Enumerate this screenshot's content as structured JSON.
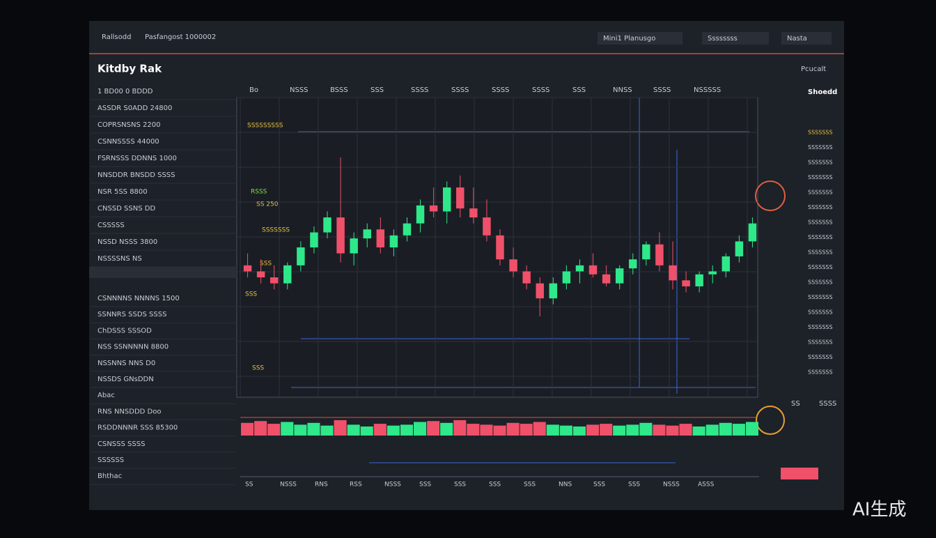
{
  "header": {
    "brand": "Rallsodd",
    "subtitle": "Pasfangost 1000002",
    "buttons": [
      "Mini1 Planusgo",
      "Ssssssss",
      "Nasta"
    ]
  },
  "panel": {
    "title": "Kitdby Rak",
    "action": "Pcucalt"
  },
  "sidebar": {
    "rows": [
      "1 BD00  0 BDDD",
      "ASSDR S0ADD 24800",
      "COPRSNSNS 2200",
      "CSNNSSSS 44000",
      "FSRNSSS DDNNS 1000",
      "NNSDDR BNSDD SSSS",
      "NSR 5SS 8800",
      "CNSSD SSNS DD",
      "CSSSSS",
      "NSSD NSSS 3800",
      "NSSSSNS NS",
      "CSNNNNS NNNNS 1500",
      "SSNNRS SSDS SSSS",
      "ChDSSS SSSOD",
      "NSS SSNNNNN 8800",
      "NSSNNS NNS D0",
      "NSSDS GNsDDN",
      "Abac",
      "RNS NNSDDD Doo",
      "RSDDNNNR SSS 85300",
      "CSNSSS SSSS",
      "SSSSSS",
      "Bhthac"
    ]
  },
  "chart": {
    "top_labels": [
      "Bo",
      "NSSS",
      "BSSS",
      "SSS",
      "SSSS",
      "SSSS",
      "SSSS",
      "SSSS",
      "SSS",
      "NNSS",
      "SSSS",
      "NSSSSS"
    ],
    "annotations": [
      "SSSSSSSSS",
      "RSSS",
      "SS 250",
      "SSSSSSS",
      "SSS",
      "SSS",
      "SSS"
    ],
    "side_title": "Shoedd",
    "price_labels": [
      "SSSSSSS",
      "SSSSSSS",
      "SSSSSSS",
      "SSSSSSS",
      "SSSSSSS",
      "SSSSSSS",
      "SSSSSSS",
      "SSSSSSS",
      "SSSSSSS",
      "SSSSSSS",
      "SSSSSSS",
      "SSSSSSS",
      "SSSSSSS",
      "SSSSSSS",
      "SSSSSSS",
      "SSSSSSS",
      "SSSSSSS"
    ],
    "bottom_labels": [
      "SS",
      "NSSS",
      "RNS",
      "RSS",
      "NSSS",
      "SSS",
      "SSS",
      "SSS",
      "SSS",
      "NNS",
      "SSS",
      "SSS",
      "NSSS",
      "ASSS"
    ],
    "up_color": "#2ee88a",
    "down_color": "#f0506a",
    "ylim": [
      0,
      100
    ],
    "vlim": [
      0,
      100
    ],
    "candles": [
      [
        44,
        48,
        40,
        42
      ],
      [
        42,
        46,
        38,
        40
      ],
      [
        40,
        44,
        36,
        38
      ],
      [
        38,
        45,
        36,
        44
      ],
      [
        44,
        52,
        42,
        50
      ],
      [
        50,
        57,
        48,
        55
      ],
      [
        55,
        62,
        53,
        60
      ],
      [
        60,
        80,
        45,
        48
      ],
      [
        48,
        55,
        44,
        53
      ],
      [
        53,
        58,
        50,
        56
      ],
      [
        56,
        60,
        48,
        50
      ],
      [
        50,
        56,
        47,
        54
      ],
      [
        54,
        60,
        52,
        58
      ],
      [
        58,
        66,
        55,
        64
      ],
      [
        64,
        70,
        60,
        62
      ],
      [
        62,
        72,
        58,
        70
      ],
      [
        70,
        74,
        60,
        63
      ],
      [
        63,
        70,
        58,
        60
      ],
      [
        60,
        66,
        52,
        54
      ],
      [
        54,
        56,
        44,
        46
      ],
      [
        46,
        50,
        40,
        42
      ],
      [
        42,
        44,
        36,
        38
      ],
      [
        38,
        40,
        27,
        33
      ],
      [
        33,
        40,
        31,
        38
      ],
      [
        38,
        44,
        36,
        42
      ],
      [
        42,
        46,
        38,
        44
      ],
      [
        44,
        48,
        40,
        41
      ],
      [
        41,
        44,
        37,
        38
      ],
      [
        38,
        44,
        36,
        43
      ],
      [
        43,
        48,
        41,
        46
      ],
      [
        46,
        52,
        44,
        51
      ],
      [
        51,
        55,
        42,
        44
      ],
      [
        44,
        52,
        36,
        39
      ],
      [
        39,
        42,
        35,
        37
      ],
      [
        37,
        42,
        35,
        41
      ],
      [
        41,
        44,
        38,
        42
      ],
      [
        42,
        48,
        40,
        47
      ],
      [
        47,
        54,
        45,
        52
      ],
      [
        52,
        60,
        50,
        58
      ]
    ],
    "volumes": [
      70,
      80,
      65,
      75,
      60,
      70,
      55,
      85,
      60,
      50,
      65,
      55,
      60,
      75,
      80,
      70,
      85,
      65,
      60,
      55,
      70,
      65,
      75,
      60,
      55,
      50,
      60,
      65,
      55,
      60,
      70,
      60,
      55,
      65,
      50,
      60,
      70,
      65,
      75
    ]
  },
  "tools": [
    "SS",
    "SSSS"
  ],
  "watermark": "AI生成"
}
